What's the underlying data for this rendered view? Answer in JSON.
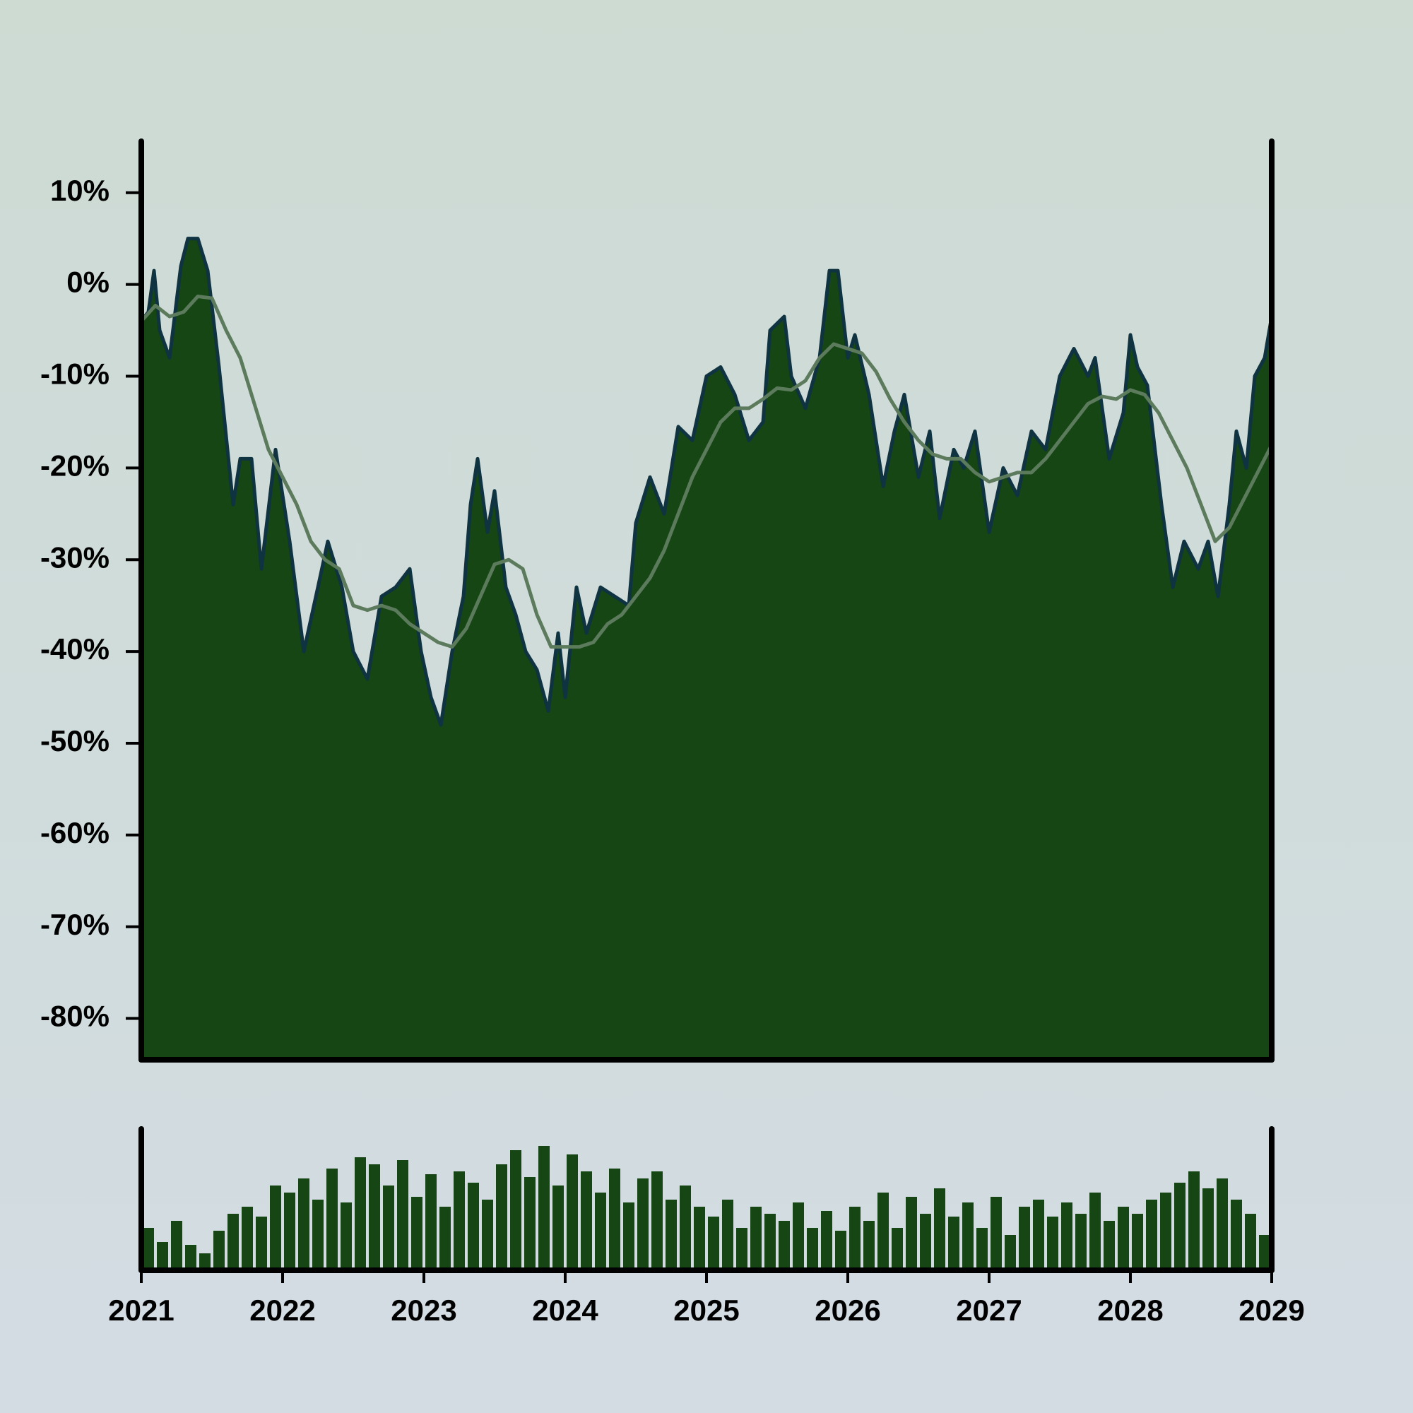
{
  "chart_data": [
    {
      "type": "area",
      "color": "#154613",
      "line_color": "#0f3340",
      "x": [
        2021.0,
        2021.05,
        2021.09,
        2021.13,
        2021.2,
        2021.28,
        2021.33,
        2021.4,
        2021.47,
        2021.55,
        2021.65,
        2021.7,
        2021.78,
        2021.85,
        2021.95,
        2022.05,
        2022.15,
        2022.25,
        2022.32,
        2022.42,
        2022.5,
        2022.6,
        2022.7,
        2022.8,
        2022.9,
        2022.98,
        2023.05,
        2023.12,
        2023.2,
        2023.28,
        2023.33,
        2023.38,
        2023.45,
        2023.5,
        2023.58,
        2023.65,
        2023.72,
        2023.8,
        2023.88,
        2023.95,
        2024.0,
        2024.08,
        2024.15,
        2024.25,
        2024.35,
        2024.45,
        2024.5,
        2024.6,
        2024.7,
        2024.8,
        2024.9,
        2025.0,
        2025.1,
        2025.2,
        2025.3,
        2025.4,
        2025.45,
        2025.55,
        2025.6,
        2025.7,
        2025.8,
        2025.87,
        2025.93,
        2026.0,
        2026.05,
        2026.15,
        2026.25,
        2026.33,
        2026.4,
        2026.5,
        2026.58,
        2026.65,
        2026.75,
        2026.82,
        2026.9,
        2027.0,
        2027.1,
        2027.2,
        2027.3,
        2027.4,
        2027.5,
        2027.6,
        2027.7,
        2027.75,
        2027.85,
        2027.95,
        2028.0,
        2028.05,
        2028.12,
        2028.22,
        2028.3,
        2028.38,
        2028.48,
        2028.55,
        2028.62,
        2028.7,
        2028.75,
        2028.82,
        2028.88,
        2028.95,
        2029.0
      ],
      "values": [
        -4,
        -3,
        1.5,
        -5,
        -8,
        2,
        5,
        5,
        1.5,
        -9,
        -24,
        -19,
        -19,
        -31,
        -18,
        -28,
        -40,
        -33,
        -28,
        -33,
        -40,
        -43,
        -34,
        -33,
        -31,
        -40,
        -45,
        -48,
        -40,
        -34,
        -24,
        -19,
        -27,
        -22.5,
        -33,
        -36,
        -40,
        -42,
        -46.5,
        -38,
        -45,
        -33,
        -38,
        -33,
        -34,
        -35,
        -26,
        -21,
        -25,
        -15.5,
        -17,
        -10,
        -9,
        -12,
        -17,
        -15,
        -5,
        -3.5,
        -10,
        -13.5,
        -8,
        1.5,
        1.5,
        -8,
        -5.5,
        -12,
        -22,
        -16,
        -12,
        -21,
        -16,
        -25.5,
        -18,
        -20,
        -16,
        -27,
        -20,
        -23,
        -16,
        -18,
        -10,
        -7,
        -10,
        -8,
        -19,
        -14,
        -5.5,
        -9,
        -11,
        -24,
        -33,
        -28,
        -31,
        -28,
        -34,
        -24,
        -16,
        -20,
        -10,
        -8,
        -3.5
      ],
      "xlim": [
        2021,
        2029
      ],
      "ylim": [
        -84.5,
        15.6
      ],
      "yticks": [
        {
          "value": 10,
          "label": "10%"
        },
        {
          "value": 0,
          "label": "0%"
        },
        {
          "value": -10,
          "label": "-10%"
        },
        {
          "value": -20,
          "label": "-20%"
        },
        {
          "value": -30,
          "label": "-30%"
        },
        {
          "value": -40,
          "label": "-40%"
        },
        {
          "value": -50,
          "label": "-50%"
        },
        {
          "value": -60,
          "label": "-60%"
        },
        {
          "value": -70,
          "label": "-70%"
        },
        {
          "value": -80,
          "label": "-80%"
        }
      ]
    },
    {
      "type": "line",
      "color": "#5c7a5c",
      "x": [
        2021.0,
        2021.1,
        2021.2,
        2021.3,
        2021.4,
        2021.5,
        2021.6,
        2021.7,
        2021.8,
        2021.9,
        2022.0,
        2022.1,
        2022.2,
        2022.3,
        2022.4,
        2022.5,
        2022.6,
        2022.7,
        2022.8,
        2022.9,
        2023.0,
        2023.1,
        2023.2,
        2023.3,
        2023.4,
        2023.5,
        2023.6,
        2023.7,
        2023.8,
        2023.9,
        2024.0,
        2024.1,
        2024.2,
        2024.3,
        2024.4,
        2024.5,
        2024.6,
        2024.7,
        2024.8,
        2024.9,
        2025.0,
        2025.1,
        2025.2,
        2025.3,
        2025.4,
        2025.5,
        2025.6,
        2025.7,
        2025.8,
        2025.9,
        2026.0,
        2026.1,
        2026.2,
        2026.3,
        2026.4,
        2026.5,
        2026.6,
        2026.7,
        2026.8,
        2026.9,
        2027.0,
        2027.1,
        2027.2,
        2027.3,
        2027.4,
        2027.5,
        2027.6,
        2027.7,
        2027.8,
        2027.9,
        2028.0,
        2028.1,
        2028.2,
        2028.3,
        2028.4,
        2028.5,
        2028.6,
        2028.7,
        2028.8,
        2028.9,
        2029.0
      ],
      "values": [
        -4,
        -2.3,
        -3.5,
        -3,
        -1.3,
        -1.5,
        -5,
        -8,
        -13,
        -18,
        -21,
        -24,
        -28,
        -30,
        -31,
        -35,
        -35.5,
        -35,
        -35.5,
        -37,
        -38,
        -39,
        -39.5,
        -37.5,
        -34,
        -30.5,
        -30,
        -31,
        -36,
        -39.5,
        -39.5,
        -39.5,
        -39,
        -37,
        -36,
        -34,
        -32,
        -29,
        -25,
        -21,
        -18,
        -15,
        -13.5,
        -13.5,
        -12.5,
        -11.3,
        -11.5,
        -10.5,
        -8,
        -6.5,
        -7,
        -7.5,
        -9.5,
        -12.5,
        -15,
        -17,
        -18.5,
        -19,
        -19,
        -20.5,
        -21.5,
        -21,
        -20.5,
        -20.5,
        -19,
        -17,
        -15,
        -13,
        -12.2,
        -12.5,
        -11.5,
        -12,
        -14,
        -17,
        -20,
        -24,
        -28,
        -26.5,
        -23.5,
        -20.5,
        -17.5
      ]
    },
    {
      "type": "bar",
      "color": "#154613",
      "x": [
        2021.05,
        2021.15,
        2021.25,
        2021.35,
        2021.45,
        2021.55,
        2021.65,
        2021.75,
        2021.85,
        2021.95,
        2022.05,
        2022.15,
        2022.25,
        2022.35,
        2022.45,
        2022.55,
        2022.65,
        2022.75,
        2022.85,
        2022.95,
        2023.05,
        2023.15,
        2023.25,
        2023.35,
        2023.45,
        2023.55,
        2023.65,
        2023.75,
        2023.85,
        2023.95,
        2024.05,
        2024.15,
        2024.25,
        2024.35,
        2024.45,
        2024.55,
        2024.65,
        2024.75,
        2024.85,
        2024.95,
        2025.05,
        2025.15,
        2025.25,
        2025.35,
        2025.45,
        2025.55,
        2025.65,
        2025.75,
        2025.85,
        2025.95,
        2026.05,
        2026.15,
        2026.25,
        2026.35,
        2026.45,
        2026.55,
        2026.65,
        2026.75,
        2026.85,
        2026.95,
        2027.05,
        2027.15,
        2027.25,
        2027.35,
        2027.45,
        2027.55,
        2027.65,
        2027.75,
        2027.85,
        2027.95,
        2028.05,
        2028.15,
        2028.25,
        2028.35,
        2028.45,
        2028.55,
        2028.65,
        2028.75,
        2028.85,
        2028.95
      ],
      "values": [
        30,
        20,
        35,
        18,
        12,
        28,
        40,
        45,
        38,
        60,
        55,
        65,
        50,
        72,
        48,
        80,
        75,
        60,
        78,
        52,
        68,
        45,
        70,
        62,
        50,
        75,
        85,
        66,
        88,
        60,
        82,
        70,
        55,
        72,
        48,
        65,
        70,
        50,
        60,
        45,
        38,
        50,
        30,
        45,
        40,
        35,
        48,
        30,
        42,
        28,
        45,
        35,
        55,
        30,
        52,
        40,
        58,
        38,
        48,
        30,
        52,
        25,
        45,
        50,
        38,
        48,
        40,
        55,
        35,
        45,
        40,
        50,
        55,
        62,
        70,
        58,
        65,
        50,
        40,
        25
      ],
      "xlim": [
        2021,
        2029
      ],
      "ylim": [
        0,
        100
      ],
      "xticks": [
        2021,
        2022,
        2023,
        2024,
        2025,
        2026,
        2027,
        2028,
        2029
      ]
    }
  ]
}
